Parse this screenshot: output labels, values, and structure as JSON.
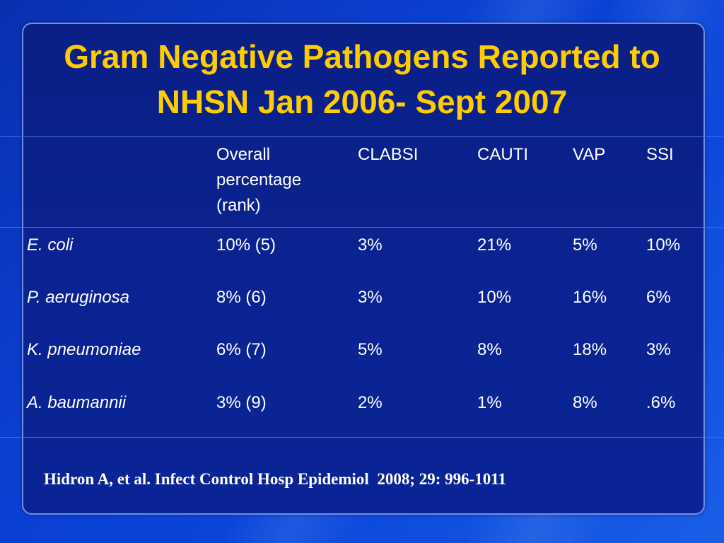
{
  "slide": {
    "title": "Gram Negative Pathogens Reported to NHSN Jan 2006- Sept 2007",
    "citation": "Hidron A, et al. Infect Control Hosp Epidemiol  2008; 29: 996-1011"
  },
  "table": {
    "headers": [
      "",
      "Overall percentage (rank)",
      "CLABSI",
      "CAUTI",
      "VAP",
      "SSI"
    ],
    "header_overall_lines": [
      "Overall",
      "percentage",
      "(rank)"
    ],
    "rows": [
      {
        "pathogen": "E. coli",
        "overall": "10% (5)",
        "clabsi": "3%",
        "cauti": "21%",
        "vap": "5%",
        "ssi": "10%"
      },
      {
        "pathogen": "P. aeruginosa",
        "overall": "8% (6)",
        "clabsi": "3%",
        "cauti": "10%",
        "vap": "16%",
        "ssi": "6%"
      },
      {
        "pathogen": "K. pneumoniae",
        "overall": "6% (7)",
        "clabsi": "5%",
        "cauti": "8%",
        "vap": "18%",
        "ssi": "3%"
      },
      {
        "pathogen": "A. baumannii",
        "overall": "3% (9)",
        "clabsi": "2%",
        "cauti": "1%",
        "vap": "8%",
        "ssi": ".6%"
      }
    ]
  }
}
